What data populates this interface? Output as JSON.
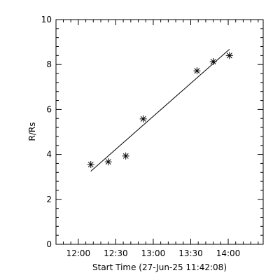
{
  "chart_data": {
    "type": "scatter",
    "xlabel": "Start Time (27-Jun-25 11:42:08)",
    "ylabel": "R/Rs",
    "x_unit": "time of day",
    "xlim": [
      "11:42:08",
      "14:28:00"
    ],
    "ylim": [
      0,
      10
    ],
    "x_ticks": [
      "12:00",
      "12:30",
      "13:00",
      "13:30",
      "14:00"
    ],
    "y_ticks": [
      "0",
      "2",
      "4",
      "6",
      "8",
      "10"
    ],
    "grid": false,
    "marker": "asterisk",
    "points": [
      {
        "x": "12:10:00",
        "y": 3.55
      },
      {
        "x": "12:24:00",
        "y": 3.67
      },
      {
        "x": "12:38:00",
        "y": 3.93
      },
      {
        "x": "12:52:00",
        "y": 5.58
      },
      {
        "x": "13:35:00",
        "y": 7.72
      },
      {
        "x": "13:48:00",
        "y": 8.13
      },
      {
        "x": "14:01:00",
        "y": 8.4
      }
    ],
    "fit_line": {
      "start": {
        "x": "12:10:00",
        "y": 3.25
      },
      "end": {
        "x": "14:01:00",
        "y": 8.68
      }
    }
  }
}
